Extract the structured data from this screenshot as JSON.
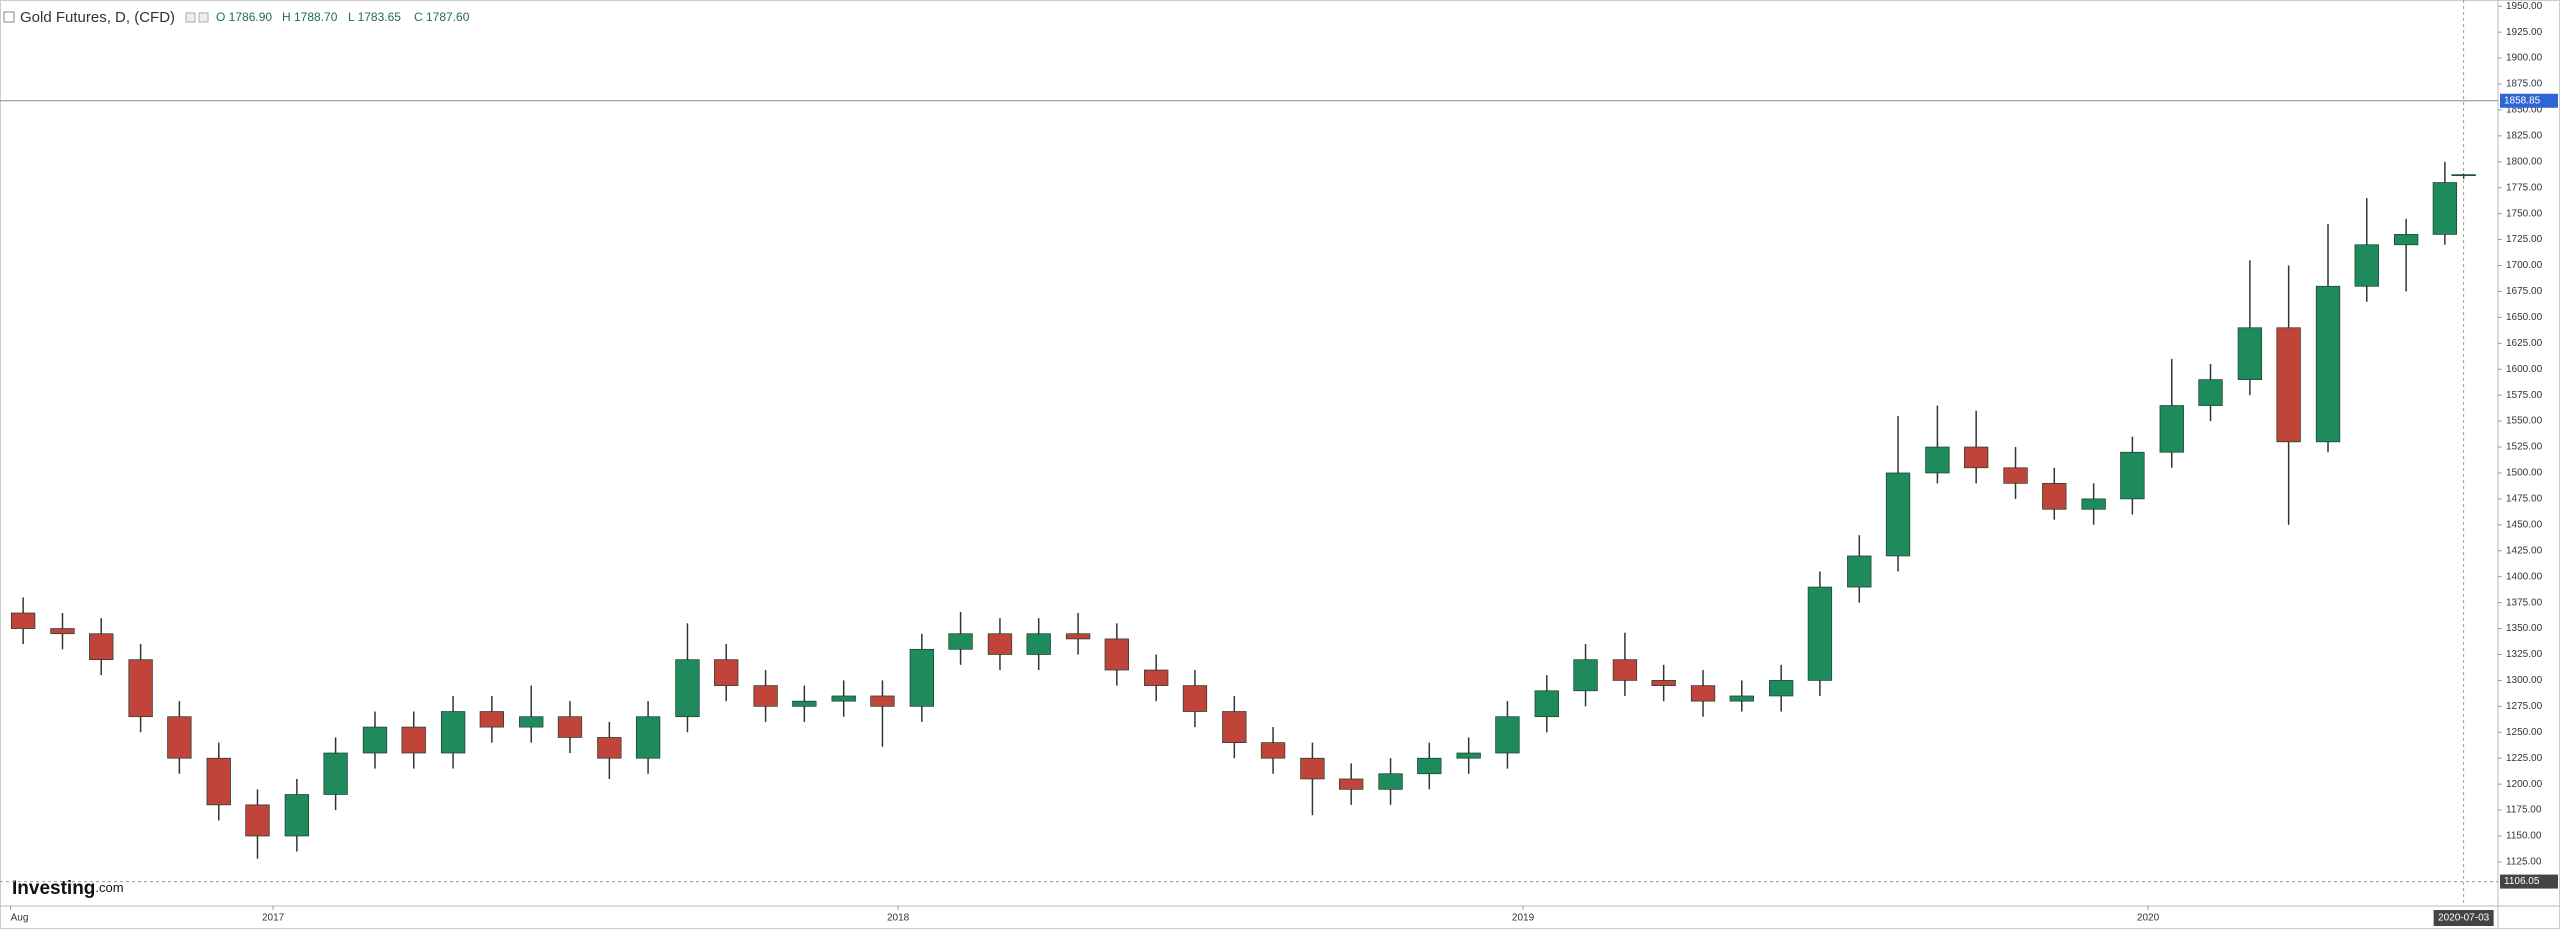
{
  "chart_data": {
    "type": "candlestick",
    "title": "Gold Futures, D, (CFD)",
    "ohlc_labels": [
      "O 1786.90",
      "H 1788.70",
      "L 1783.65",
      "C 1787.60"
    ],
    "watermark": "Investing",
    "watermark_suffix": ".com",
    "up_color": "#1f8a5b",
    "down_color": "#c0443a",
    "wick_color": "#333333",
    "x": [
      2016.6,
      2016.663,
      2016.725,
      2016.788,
      2016.85,
      2016.913,
      2016.975,
      2017.038,
      2017.1,
      2017.163,
      2017.225,
      2017.288,
      2017.35,
      2017.413,
      2017.475,
      2017.538,
      2017.6,
      2017.663,
      2017.725,
      2017.788,
      2017.85,
      2017.913,
      2017.975,
      2018.038,
      2018.1,
      2018.163,
      2018.225,
      2018.288,
      2018.35,
      2018.413,
      2018.475,
      2018.538,
      2018.6,
      2018.663,
      2018.725,
      2018.788,
      2018.85,
      2018.913,
      2018.975,
      2019.038,
      2019.1,
      2019.163,
      2019.225,
      2019.288,
      2019.35,
      2019.413,
      2019.475,
      2019.538,
      2019.6,
      2019.663,
      2019.725,
      2019.788,
      2019.85,
      2019.913,
      2019.975,
      2020.038,
      2020.1,
      2020.163,
      2020.225,
      2020.288,
      2020.35,
      2020.413,
      2020.475,
      2020.505
    ],
    "open": [
      1365,
      1350,
      1345,
      1320,
      1265,
      1225,
      1180,
      1150,
      1190,
      1230,
      1255,
      1230,
      1270,
      1255,
      1265,
      1245,
      1225,
      1265,
      1320,
      1295,
      1275,
      1280,
      1285,
      1275,
      1330,
      1345,
      1325,
      1345,
      1340,
      1310,
      1295,
      1270,
      1240,
      1225,
      1205,
      1195,
      1210,
      1225,
      1230,
      1265,
      1290,
      1320,
      1300,
      1295,
      1280,
      1285,
      1300,
      1390,
      1420,
      1500,
      1525,
      1505,
      1490,
      1465,
      1475,
      1520,
      1565,
      1590,
      1640,
      1530,
      1680,
      1720,
      1730,
      1786.9
    ],
    "high": [
      1380,
      1365,
      1360,
      1335,
      1280,
      1240,
      1195,
      1205,
      1245,
      1270,
      1270,
      1285,
      1285,
      1295,
      1280,
      1260,
      1280,
      1355,
      1335,
      1310,
      1295,
      1300,
      1300,
      1345,
      1366,
      1360,
      1360,
      1365,
      1355,
      1325,
      1310,
      1285,
      1255,
      1240,
      1220,
      1225,
      1240,
      1245,
      1280,
      1305,
      1335,
      1346,
      1315,
      1310,
      1300,
      1315,
      1405,
      1440,
      1555,
      1565,
      1560,
      1525,
      1505,
      1490,
      1535,
      1610,
      1605,
      1705,
      1700,
      1740,
      1765,
      1745,
      1800,
      1788.7
    ],
    "low": [
      1335,
      1330,
      1305,
      1250,
      1210,
      1165,
      1128,
      1135,
      1175,
      1215,
      1215,
      1215,
      1240,
      1240,
      1230,
      1205,
      1210,
      1250,
      1280,
      1260,
      1260,
      1265,
      1236,
      1260,
      1315,
      1310,
      1310,
      1325,
      1295,
      1280,
      1255,
      1225,
      1210,
      1170,
      1180,
      1180,
      1195,
      1210,
      1215,
      1250,
      1275,
      1285,
      1280,
      1265,
      1270,
      1270,
      1285,
      1375,
      1405,
      1490,
      1490,
      1475,
      1455,
      1450,
      1460,
      1505,
      1550,
      1575,
      1450,
      1520,
      1665,
      1675,
      1720,
      1783.65
    ],
    "close": [
      1350,
      1345,
      1320,
      1265,
      1225,
      1180,
      1150,
      1190,
      1230,
      1255,
      1230,
      1270,
      1255,
      1265,
      1245,
      1225,
      1265,
      1320,
      1295,
      1275,
      1280,
      1285,
      1275,
      1330,
      1345,
      1325,
      1345,
      1340,
      1310,
      1295,
      1270,
      1240,
      1225,
      1205,
      1195,
      1210,
      1225,
      1230,
      1265,
      1290,
      1320,
      1300,
      1295,
      1280,
      1285,
      1300,
      1390,
      1420,
      1500,
      1525,
      1505,
      1490,
      1465,
      1475,
      1520,
      1565,
      1590,
      1640,
      1530,
      1680,
      1720,
      1730,
      1780,
      1787.6
    ],
    "xlim": [
      2016.563,
      2020.56
    ],
    "xticks": [
      {
        "value": 2016.58,
        "label": "Aug"
      },
      2017,
      2018,
      2019,
      2020
    ],
    "crosshair_x": {
      "value": 2020.505,
      "label": "2020-07-03"
    },
    "ylim": [
      1082.5,
      1956
    ],
    "yticks": [
      {
        "value": 1125,
        "label": "1125.00"
      },
      {
        "value": 1150,
        "label": "1150.00"
      },
      {
        "value": 1175,
        "label": "1175.00"
      },
      {
        "value": 1200,
        "label": "1200.00"
      },
      {
        "value": 1225,
        "label": "1225.00"
      },
      {
        "value": 1250,
        "label": "1250.00"
      },
      {
        "value": 1275,
        "label": "1275.00"
      },
      {
        "value": 1300,
        "label": "1300.00"
      },
      {
        "value": 1325,
        "label": "1325.00"
      },
      {
        "value": 1350,
        "label": "1350.00"
      },
      {
        "value": 1375,
        "label": "1375.00"
      },
      {
        "value": 1400,
        "label": "1400.00"
      },
      {
        "value": 1425,
        "label": "1425.00"
      },
      {
        "value": 1450,
        "label": "1450.00"
      },
      {
        "value": 1475,
        "label": "1475.00"
      },
      {
        "value": 1500,
        "label": "1500.00"
      },
      {
        "value": 1525,
        "label": "1525.00"
      },
      {
        "value": 1550,
        "label": "1550.00"
      },
      {
        "value": 1575,
        "label": "1575.00"
      },
      {
        "value": 1600,
        "label": "1600.00"
      },
      {
        "value": 1625,
        "label": "1625.00"
      },
      {
        "value": 1650,
        "label": "1650.00"
      },
      {
        "value": 1675,
        "label": "1675.00"
      },
      {
        "value": 1700,
        "label": "1700.00"
      },
      {
        "value": 1725,
        "label": "1725.00"
      },
      {
        "value": 1750,
        "label": "1750.00"
      },
      {
        "value": 1775,
        "label": "1775.00"
      },
      {
        "value": 1800,
        "label": "1800.00"
      },
      {
        "value": 1825,
        "label": "1825.00"
      },
      {
        "value": 1850,
        "label": "1850.00"
      },
      {
        "value": 1875,
        "label": "1875.00"
      },
      {
        "value": 1900,
        "label": "1900.00"
      },
      {
        "value": 1925,
        "label": "1925.00"
      },
      {
        "value": 1950,
        "label": "1950.00"
      }
    ],
    "current_price": 1858.85,
    "low_marker": 1106.05
  }
}
